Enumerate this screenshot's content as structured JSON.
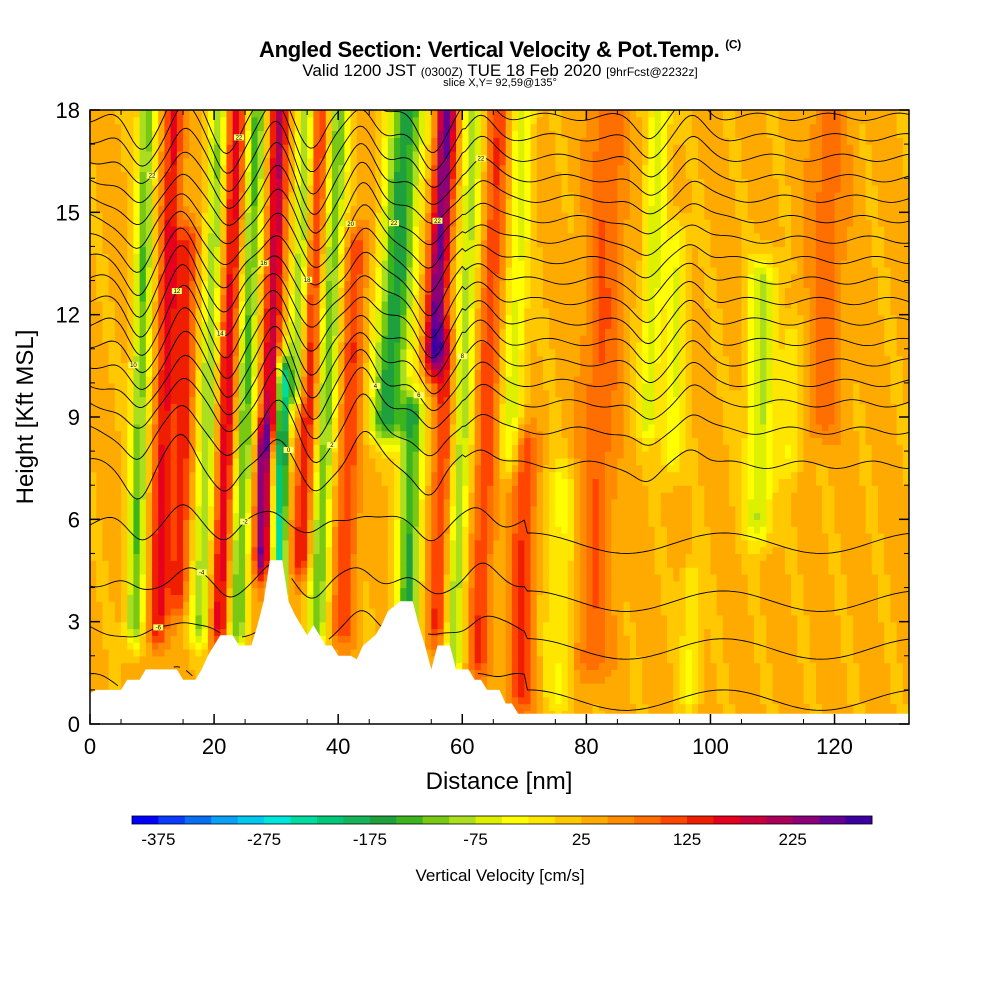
{
  "header": {
    "title_main": "Angled Section: Vertical Velocity & Pot.Temp.",
    "title_units": "(C)",
    "valid_prefix": "Valid 1200 JST",
    "valid_z": "(0300Z)",
    "valid_date": "TUE 18 Feb 2020",
    "forecast": "[9hrFcst@2232z]",
    "slice": "slice X,Y= 92,59@135°"
  },
  "chart_data": {
    "type": "heatmap",
    "title": "Angled Section: Vertical Velocity & Pot.Temp. (C)",
    "xlabel": "Distance [nm]",
    "ylabel": "Height [Kft MSL]",
    "xlim": [
      0,
      132
    ],
    "ylim": [
      0,
      18
    ],
    "x_ticks": [
      0,
      20,
      40,
      60,
      80,
      100,
      120
    ],
    "y_ticks": [
      0,
      3,
      6,
      9,
      12,
      15,
      18
    ],
    "colorbar": {
      "title": "Vertical Velocity [cm/s]",
      "min": -400,
      "max": 300,
      "step": 25,
      "tick_values": [
        -375,
        -275,
        -175,
        -75,
        25,
        125,
        225
      ],
      "colors": [
        "#0000ff",
        "#0a3cff",
        "#0a6ef5",
        "#0aa0f5",
        "#00c8f0",
        "#00e6dc",
        "#00dca0",
        "#00c878",
        "#14b45a",
        "#1ea03c",
        "#3cb41e",
        "#78c814",
        "#aade1e",
        "#dcf000",
        "#ffff00",
        "#ffe600",
        "#ffc800",
        "#ffaa00",
        "#ff8c00",
        "#ff6e00",
        "#ff4600",
        "#f01e00",
        "#e6001e",
        "#c8003c",
        "#aa005a",
        "#8c0078",
        "#640096",
        "#3c00a0"
      ]
    },
    "velocity_features": [
      {
        "x": 8,
        "amplitude": -150,
        "width": 1.4,
        "y_top": 18,
        "y_bottom": 3,
        "lean": 0.4
      },
      {
        "x": 12,
        "amplitude": 130,
        "width": 1.5,
        "y_top": 18,
        "y_bottom": 3,
        "lean": 0.5
      },
      {
        "x": 15,
        "amplitude": 110,
        "width": 1.6,
        "y_top": 14,
        "y_bottom": 4,
        "lean": 0.4
      },
      {
        "x": 19,
        "amplitude": -130,
        "width": 1.6,
        "y_top": 18,
        "y_bottom": 3,
        "lean": 0.6
      },
      {
        "x": 22,
        "amplitude": 140,
        "width": 1.6,
        "y_top": 18,
        "y_bottom": 3,
        "lean": 0.5
      },
      {
        "x": 25,
        "amplitude": -160,
        "width": 1.5,
        "y_top": 18,
        "y_bottom": 3,
        "lean": 0.6
      },
      {
        "x": 28,
        "amplitude": 230,
        "width": 1.2,
        "y_top": 8,
        "y_bottom": 5,
        "lean": 0.2
      },
      {
        "x": 29,
        "amplitude": 170,
        "width": 1.4,
        "y_top": 18,
        "y_bottom": 9,
        "lean": 0.5
      },
      {
        "x": 31,
        "amplitude": -270,
        "width": 1.1,
        "y_top": 10,
        "y_bottom": 4,
        "lean": 0.3
      },
      {
        "x": 33,
        "amplitude": -150,
        "width": 1.5,
        "y_top": 18,
        "y_bottom": 10,
        "lean": 0.7
      },
      {
        "x": 35,
        "amplitude": 120,
        "width": 1.6,
        "y_top": 18,
        "y_bottom": 5,
        "lean": 0.6
      },
      {
        "x": 38,
        "amplitude": -150,
        "width": 1.6,
        "y_top": 18,
        "y_bottom": 3,
        "lean": 0.7
      },
      {
        "x": 42,
        "amplitude": 90,
        "width": 1.8,
        "y_top": 14,
        "y_bottom": 3,
        "lean": 0.6
      },
      {
        "x": 48,
        "amplitude": -200,
        "width": 2.8,
        "y_top": 18,
        "y_bottom": 9,
        "lean": 1.0
      },
      {
        "x": 52,
        "amplitude": -180,
        "width": 1.8,
        "y_top": 9,
        "y_bottom": 3,
        "lean": 0.4
      },
      {
        "x": 55,
        "amplitude": 230,
        "width": 1.6,
        "y_top": 18,
        "y_bottom": 11,
        "lean": 0.8
      },
      {
        "x": 57,
        "amplitude": 100,
        "width": 1.6,
        "y_top": 11,
        "y_bottom": 3,
        "lean": 0.5
      },
      {
        "x": 60,
        "amplitude": -120,
        "width": 1.6,
        "y_top": 18,
        "y_bottom": 2,
        "lean": 0.6
      },
      {
        "x": 64,
        "amplitude": 90,
        "width": 1.8,
        "y_top": 18,
        "y_bottom": 2,
        "lean": 0.6
      },
      {
        "x": 68,
        "amplitude": -90,
        "width": 1.8,
        "y_top": 18,
        "y_bottom": 8,
        "lean": 0.6
      },
      {
        "x": 70,
        "amplitude": 100,
        "width": 2.0,
        "y_top": 8,
        "y_bottom": 1,
        "lean": 0.2
      },
      {
        "x": 76,
        "amplitude": -60,
        "width": 2.5,
        "y_top": 7,
        "y_bottom": 1,
        "lean": 0.1
      },
      {
        "x": 82,
        "amplitude": 70,
        "width": 3.0,
        "y_top": 18,
        "y_bottom": 2,
        "lean": 0.5
      },
      {
        "x": 90,
        "amplitude": -90,
        "width": 1.8,
        "y_top": 18,
        "y_bottom": 9,
        "lean": 0.6
      },
      {
        "x": 94,
        "amplitude": -80,
        "width": 1.6,
        "y_top": 14,
        "y_bottom": 8,
        "lean": 0.4
      },
      {
        "x": 97,
        "amplitude": -60,
        "width": 1.5,
        "y_top": 4,
        "y_bottom": 1,
        "lean": 0.1
      },
      {
        "x": 108,
        "amplitude": -110,
        "width": 2.2,
        "y_top": 13,
        "y_bottom": 6,
        "lean": 0.3
      },
      {
        "x": 113,
        "amplitude": -60,
        "width": 1.8,
        "y_top": 11,
        "y_bottom": 8,
        "lean": 0.2
      },
      {
        "x": 118,
        "amplitude": 60,
        "width": 3.0,
        "y_top": 18,
        "y_bottom": 9,
        "lean": 0.4
      }
    ],
    "terrain": [
      [
        0,
        0.9
      ],
      [
        1,
        1.0
      ],
      [
        5,
        1.0
      ],
      [
        6,
        1.3
      ],
      [
        8,
        1.3
      ],
      [
        9,
        1.6
      ],
      [
        14,
        1.6
      ],
      [
        15,
        1.3
      ],
      [
        17,
        1.3
      ],
      [
        18,
        1.6
      ],
      [
        19,
        2.0
      ],
      [
        20,
        2.3
      ],
      [
        21,
        2.6
      ],
      [
        23,
        2.6
      ],
      [
        24,
        2.3
      ],
      [
        26,
        2.3
      ],
      [
        27,
        2.9
      ],
      [
        28,
        3.6
      ],
      [
        29,
        4.8
      ],
      [
        31,
        4.8
      ],
      [
        32,
        3.6
      ],
      [
        33,
        3.2
      ],
      [
        34,
        2.9
      ],
      [
        35,
        2.6
      ],
      [
        36,
        2.9
      ],
      [
        37,
        2.6
      ],
      [
        38,
        2.3
      ],
      [
        39,
        2.3
      ],
      [
        40,
        2.0
      ],
      [
        42,
        2.0
      ],
      [
        43,
        1.9
      ],
      [
        44,
        2.3
      ],
      [
        46,
        2.6
      ],
      [
        47,
        2.9
      ],
      [
        48,
        3.3
      ],
      [
        50,
        3.6
      ],
      [
        52,
        3.6
      ],
      [
        53,
        2.9
      ],
      [
        54,
        2.3
      ],
      [
        55,
        1.6
      ],
      [
        56,
        2.3
      ],
      [
        57,
        2.3
      ],
      [
        58,
        2.3
      ],
      [
        59,
        1.6
      ],
      [
        61,
        1.6
      ],
      [
        62,
        1.3
      ],
      [
        63,
        1.3
      ],
      [
        64,
        1.0
      ],
      [
        66,
        1.0
      ],
      [
        67,
        0.6
      ],
      [
        68,
        0.6
      ],
      [
        69,
        0.3
      ],
      [
        132,
        0.3
      ]
    ],
    "isentropes": {
      "levels_labeled": [
        -8,
        -6,
        -4,
        -2,
        0,
        2,
        4,
        6,
        8,
        10,
        12,
        14,
        16,
        18,
        20,
        22
      ],
      "base_heights": [
        1.3,
        2.8,
        4.2,
        5.9,
        7.6,
        8.6,
        9.4,
        10.0,
        10.6,
        11.2,
        11.8,
        12.4,
        13.0,
        13.6,
        14.2,
        14.8,
        15.4,
        16.0,
        16.6,
        17.2,
        17.8
      ],
      "wave_centers": [
        8,
        15,
        22,
        30,
        36,
        44,
        55,
        63,
        90,
        97
      ]
    }
  }
}
